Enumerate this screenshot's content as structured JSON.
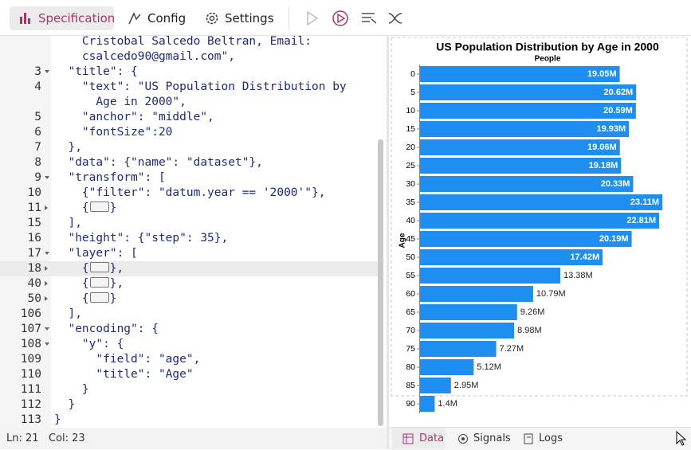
{
  "toolbar": {
    "tabs": [
      "Specification",
      "Config",
      "Settings"
    ]
  },
  "editor": {
    "lines": [
      {
        "text": "    Cristobal Salcedo Beltran, Email:"
      },
      {
        "text": "    csalcedo90@gmail.com\","
      },
      {
        "number": 3,
        "fold": "open",
        "text": "  \"title\": {"
      },
      {
        "number": 4,
        "text": "    \"text\": \"US Population Distribution by"
      },
      {
        "text": "      Age in 2000\","
      },
      {
        "number": 5,
        "text": "    \"anchor\": \"middle\","
      },
      {
        "number": 6,
        "text": "    \"fontSize\":20"
      },
      {
        "number": 7,
        "text": "  },"
      },
      {
        "number": 8,
        "text": "  \"data\": {\"name\": \"dataset\"},"
      },
      {
        "number": 9,
        "fold": "open",
        "text": "  \"transform\": ["
      },
      {
        "number": 10,
        "text": "    {\"filter\": \"datum.year == '2000'\"},"
      },
      {
        "number": 11,
        "fold": "closed",
        "text": "    {",
        "tail": "}"
      },
      {
        "number": 15,
        "text": "  ],"
      },
      {
        "number": 16,
        "text": "  \"height\": {\"step\": 35},"
      },
      {
        "number": 17,
        "fold": "open",
        "text": "  \"layer\": ["
      },
      {
        "number": 18,
        "fold": "closed",
        "text": "    {",
        "tail": "},",
        "highlight": true
      },
      {
        "number": 40,
        "fold": "closed",
        "text": "    {",
        "tail": "},"
      },
      {
        "number": 50,
        "fold": "closed",
        "text": "    {",
        "tail": "}"
      },
      {
        "number": 106,
        "text": "  ],"
      },
      {
        "number": 107,
        "fold": "open",
        "text": "  \"encoding\": {"
      },
      {
        "number": 108,
        "fold": "open",
        "text": "    \"y\": {"
      },
      {
        "number": 109,
        "text": "      \"field\": \"age\","
      },
      {
        "number": 110,
        "text": "      \"title\": \"Age\""
      },
      {
        "number": 111,
        "text": "    }"
      },
      {
        "number": 112,
        "text": "  }"
      },
      {
        "number": 113,
        "text": "}"
      }
    ]
  },
  "status": {
    "line": "Ln: 21",
    "column": "Col: 23"
  },
  "chart_data": {
    "type": "bar",
    "orientation": "horizontal",
    "title": "US Population Distribution by Age in 2000",
    "x_title": "People",
    "y_title": "Age",
    "categories": [
      "0",
      "5",
      "10",
      "15",
      "20",
      "25",
      "30",
      "35",
      "40",
      "45",
      "50",
      "55",
      "60",
      "65",
      "70",
      "75",
      "80",
      "85",
      "90"
    ],
    "values": [
      19.05,
      20.62,
      20.59,
      19.93,
      19.06,
      19.18,
      20.33,
      23.11,
      22.81,
      20.19,
      17.42,
      13.38,
      10.79,
      9.26,
      8.98,
      7.27,
      5.12,
      2.95,
      1.4
    ],
    "value_labels": [
      "19.05M",
      "20.62M",
      "20.59M",
      "19.93M",
      "19.06M",
      "19.18M",
      "20.33M",
      "23.11M",
      "22.81M",
      "20.19M",
      "17.42M",
      "13.38M",
      "10.79M",
      "9.26M",
      "8.98M",
      "7.27M",
      "5.12M",
      "2.95M",
      "1.4M"
    ],
    "color": "#1e8ff0"
  },
  "bottom_tabs": [
    "Data",
    "Signals",
    "Logs"
  ]
}
